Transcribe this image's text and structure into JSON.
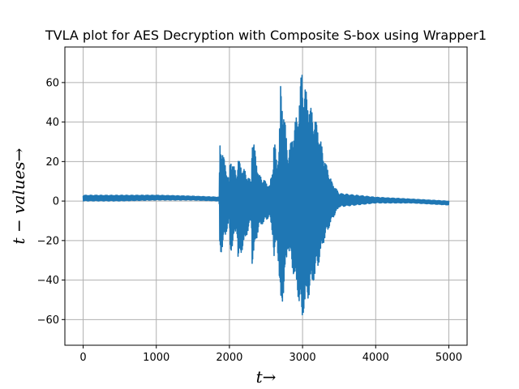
{
  "chart_data": {
    "type": "line",
    "title": "TVLA plot for AES Decryption with Composite S-box using Wrapper1",
    "xlabel": "t→",
    "ylabel": "t − values→",
    "xlim": [
      -250,
      5250
    ],
    "ylim": [
      -73,
      78
    ],
    "xticks": [
      0,
      1000,
      2000,
      3000,
      4000,
      5000
    ],
    "xtick_labels": [
      "0",
      "1000",
      "2000",
      "3000",
      "4000",
      "5000"
    ],
    "yticks": [
      -60,
      -40,
      -20,
      0,
      20,
      40,
      60
    ],
    "ytick_labels": [
      "−60",
      "−40",
      "−20",
      "0",
      "20",
      "40",
      "60"
    ],
    "grid": true,
    "legend": "none",
    "series": [
      {
        "color": "#1f77b4",
        "envelope_x": [
          0,
          500,
          1000,
          1500,
          1860,
          1870,
          1880,
          2000,
          2010,
          2100,
          2120,
          2300,
          2310,
          2400,
          2550,
          2600,
          2610,
          2650,
          2680,
          2700,
          2750,
          2800,
          2950,
          2990,
          3000,
          3100,
          3200,
          3300,
          3400,
          3500,
          4000,
          4500,
          5000
        ],
        "envelope_upper": [
          3,
          3,
          3,
          2.5,
          2,
          32,
          30,
          10,
          24,
          14,
          22,
          10,
          36,
          14,
          8,
          20,
          34,
          20,
          30,
          60,
          46,
          24,
          50,
          71,
          64,
          50,
          40,
          22,
          10,
          4,
          2,
          1,
          0
        ],
        "envelope_lower": [
          0,
          0,
          0.5,
          0.5,
          0,
          -30,
          -28,
          -10,
          -28,
          -14,
          -32,
          -10,
          -33,
          -14,
          -8,
          -20,
          -33,
          -20,
          -40,
          -60,
          -45,
          -24,
          -52,
          -66,
          -60,
          -48,
          -36,
          -20,
          -10,
          -3,
          -1,
          -1,
          -2
        ]
      }
    ]
  }
}
